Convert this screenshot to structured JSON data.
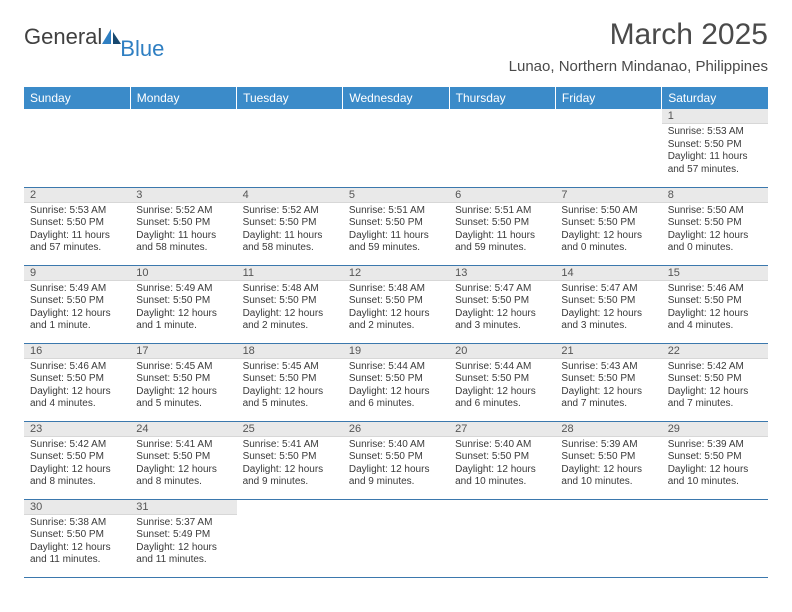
{
  "logo": {
    "general": "General",
    "blue": "Blue"
  },
  "title": "March 2025",
  "location": "Lunao, Northern Mindanao, Philippines",
  "header_bg": "#3b8bc9",
  "daynum_bg": "#e9e9e9",
  "row_border": "#3b78ad",
  "days": [
    "Sunday",
    "Monday",
    "Tuesday",
    "Wednesday",
    "Thursday",
    "Friday",
    "Saturday"
  ],
  "weeks": [
    [
      null,
      null,
      null,
      null,
      null,
      null,
      {
        "n": "1",
        "sr": "Sunrise: 5:53 AM",
        "ss": "Sunset: 5:50 PM",
        "dl": "Daylight: 11 hours and 57 minutes."
      }
    ],
    [
      {
        "n": "2",
        "sr": "Sunrise: 5:53 AM",
        "ss": "Sunset: 5:50 PM",
        "dl": "Daylight: 11 hours and 57 minutes."
      },
      {
        "n": "3",
        "sr": "Sunrise: 5:52 AM",
        "ss": "Sunset: 5:50 PM",
        "dl": "Daylight: 11 hours and 58 minutes."
      },
      {
        "n": "4",
        "sr": "Sunrise: 5:52 AM",
        "ss": "Sunset: 5:50 PM",
        "dl": "Daylight: 11 hours and 58 minutes."
      },
      {
        "n": "5",
        "sr": "Sunrise: 5:51 AM",
        "ss": "Sunset: 5:50 PM",
        "dl": "Daylight: 11 hours and 59 minutes."
      },
      {
        "n": "6",
        "sr": "Sunrise: 5:51 AM",
        "ss": "Sunset: 5:50 PM",
        "dl": "Daylight: 11 hours and 59 minutes."
      },
      {
        "n": "7",
        "sr": "Sunrise: 5:50 AM",
        "ss": "Sunset: 5:50 PM",
        "dl": "Daylight: 12 hours and 0 minutes."
      },
      {
        "n": "8",
        "sr": "Sunrise: 5:50 AM",
        "ss": "Sunset: 5:50 PM",
        "dl": "Daylight: 12 hours and 0 minutes."
      }
    ],
    [
      {
        "n": "9",
        "sr": "Sunrise: 5:49 AM",
        "ss": "Sunset: 5:50 PM",
        "dl": "Daylight: 12 hours and 1 minute."
      },
      {
        "n": "10",
        "sr": "Sunrise: 5:49 AM",
        "ss": "Sunset: 5:50 PM",
        "dl": "Daylight: 12 hours and 1 minute."
      },
      {
        "n": "11",
        "sr": "Sunrise: 5:48 AM",
        "ss": "Sunset: 5:50 PM",
        "dl": "Daylight: 12 hours and 2 minutes."
      },
      {
        "n": "12",
        "sr": "Sunrise: 5:48 AM",
        "ss": "Sunset: 5:50 PM",
        "dl": "Daylight: 12 hours and 2 minutes."
      },
      {
        "n": "13",
        "sr": "Sunrise: 5:47 AM",
        "ss": "Sunset: 5:50 PM",
        "dl": "Daylight: 12 hours and 3 minutes."
      },
      {
        "n": "14",
        "sr": "Sunrise: 5:47 AM",
        "ss": "Sunset: 5:50 PM",
        "dl": "Daylight: 12 hours and 3 minutes."
      },
      {
        "n": "15",
        "sr": "Sunrise: 5:46 AM",
        "ss": "Sunset: 5:50 PM",
        "dl": "Daylight: 12 hours and 4 minutes."
      }
    ],
    [
      {
        "n": "16",
        "sr": "Sunrise: 5:46 AM",
        "ss": "Sunset: 5:50 PM",
        "dl": "Daylight: 12 hours and 4 minutes."
      },
      {
        "n": "17",
        "sr": "Sunrise: 5:45 AM",
        "ss": "Sunset: 5:50 PM",
        "dl": "Daylight: 12 hours and 5 minutes."
      },
      {
        "n": "18",
        "sr": "Sunrise: 5:45 AM",
        "ss": "Sunset: 5:50 PM",
        "dl": "Daylight: 12 hours and 5 minutes."
      },
      {
        "n": "19",
        "sr": "Sunrise: 5:44 AM",
        "ss": "Sunset: 5:50 PM",
        "dl": "Daylight: 12 hours and 6 minutes."
      },
      {
        "n": "20",
        "sr": "Sunrise: 5:44 AM",
        "ss": "Sunset: 5:50 PM",
        "dl": "Daylight: 12 hours and 6 minutes."
      },
      {
        "n": "21",
        "sr": "Sunrise: 5:43 AM",
        "ss": "Sunset: 5:50 PM",
        "dl": "Daylight: 12 hours and 7 minutes."
      },
      {
        "n": "22",
        "sr": "Sunrise: 5:42 AM",
        "ss": "Sunset: 5:50 PM",
        "dl": "Daylight: 12 hours and 7 minutes."
      }
    ],
    [
      {
        "n": "23",
        "sr": "Sunrise: 5:42 AM",
        "ss": "Sunset: 5:50 PM",
        "dl": "Daylight: 12 hours and 8 minutes."
      },
      {
        "n": "24",
        "sr": "Sunrise: 5:41 AM",
        "ss": "Sunset: 5:50 PM",
        "dl": "Daylight: 12 hours and 8 minutes."
      },
      {
        "n": "25",
        "sr": "Sunrise: 5:41 AM",
        "ss": "Sunset: 5:50 PM",
        "dl": "Daylight: 12 hours and 9 minutes."
      },
      {
        "n": "26",
        "sr": "Sunrise: 5:40 AM",
        "ss": "Sunset: 5:50 PM",
        "dl": "Daylight: 12 hours and 9 minutes."
      },
      {
        "n": "27",
        "sr": "Sunrise: 5:40 AM",
        "ss": "Sunset: 5:50 PM",
        "dl": "Daylight: 12 hours and 10 minutes."
      },
      {
        "n": "28",
        "sr": "Sunrise: 5:39 AM",
        "ss": "Sunset: 5:50 PM",
        "dl": "Daylight: 12 hours and 10 minutes."
      },
      {
        "n": "29",
        "sr": "Sunrise: 5:39 AM",
        "ss": "Sunset: 5:50 PM",
        "dl": "Daylight: 12 hours and 10 minutes."
      }
    ],
    [
      {
        "n": "30",
        "sr": "Sunrise: 5:38 AM",
        "ss": "Sunset: 5:50 PM",
        "dl": "Daylight: 12 hours and 11 minutes."
      },
      {
        "n": "31",
        "sr": "Sunrise: 5:37 AM",
        "ss": "Sunset: 5:49 PM",
        "dl": "Daylight: 12 hours and 11 minutes."
      },
      null,
      null,
      null,
      null,
      null
    ]
  ]
}
